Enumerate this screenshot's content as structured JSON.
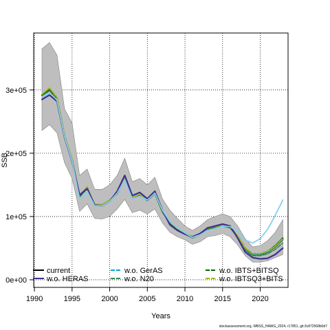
{
  "chart_data": {
    "type": "line",
    "xlabel": "Years",
    "ylabel": "SSB",
    "xlim": [
      1989.9,
      2023.7
    ],
    "ylim": [
      -12000,
      390000
    ],
    "xticks": [
      1990,
      1995,
      2000,
      2005,
      2010,
      2015,
      2020
    ],
    "xtick_labels": [
      "1990",
      "1995",
      "2000",
      "2005",
      "2010",
      "2015",
      "2020"
    ],
    "yticks": [
      0,
      100000,
      200000,
      300000
    ],
    "ytick_labels": [
      "0e+00",
      "1e+05",
      "2e+05",
      "3e+05"
    ],
    "grid": true,
    "legend_position": "bottom",
    "colors": {
      "band": "#bebebe",
      "current": "#000000",
      "heras": "#3d2f8f",
      "geras": "#00aacc",
      "n20": "#2e8b57",
      "ibts": "#006400",
      "ibtsq3": "#a4b228",
      "skyblue": "#87ceeb"
    },
    "band": {
      "x": [
        1991,
        1992,
        1993,
        1994,
        1995,
        1996,
        1997,
        1998,
        1999,
        2000,
        2001,
        2002,
        2003,
        2004,
        2005,
        2006,
        2007,
        2008,
        2009,
        2010,
        2011,
        2012,
        2013,
        2014,
        2015,
        2016,
        2017,
        2018,
        2019,
        2020,
        2021,
        2022,
        2023
      ],
      "lower": [
        236000,
        245000,
        232000,
        185000,
        160000,
        108000,
        120000,
        97000,
        96000,
        100000,
        112000,
        127000,
        106000,
        110000,
        104000,
        112000,
        90000,
        75000,
        68000,
        63000,
        56000,
        60000,
        68000,
        70000,
        73000,
        68000,
        55000,
        38000,
        28000,
        28000,
        30000,
        35000,
        40000
      ],
      "upper": [
        365000,
        375000,
        355000,
        270000,
        248000,
        165000,
        175000,
        143000,
        143000,
        150000,
        165000,
        192000,
        155000,
        160000,
        150000,
        162000,
        128000,
        110000,
        97000,
        85000,
        78000,
        85000,
        95000,
        100000,
        104000,
        100000,
        85000,
        65000,
        52000,
        54000,
        62000,
        75000,
        95000
      ]
    },
    "series": [
      {
        "name": "current",
        "style": "solid",
        "values": [
          292000,
          302000,
          287000,
          227000,
          190000,
          132000,
          146000,
          118000,
          118000,
          125000,
          137000,
          160000,
          129000,
          134000,
          126000,
          137000,
          108000,
          90000,
          80000,
          73000,
          67000,
          72000,
          80000,
          83000,
          86000,
          83000,
          68000,
          49000,
          40000,
          40000,
          44000,
          52000,
          64000
        ]
      },
      {
        "name": "w.o. HERAS",
        "style": "solid",
        "values": [
          285000,
          292000,
          282000,
          225000,
          187000,
          134000,
          144000,
          118000,
          117000,
          124000,
          140000,
          165000,
          133000,
          138000,
          128000,
          140000,
          110000,
          87000,
          78000,
          72000,
          68000,
          73000,
          82000,
          85000,
          88000,
          85000,
          66000,
          44000,
          35000,
          33000,
          34000,
          40000,
          50000
        ]
      },
      {
        "name": "w.o. GerAS",
        "style": "dashed",
        "values": [
          291000,
          300000,
          286000,
          227000,
          190000,
          132000,
          145000,
          118000,
          118000,
          125000,
          137000,
          160000,
          129000,
          134000,
          126000,
          137000,
          108000,
          90000,
          80000,
          73000,
          67000,
          72000,
          80000,
          83000,
          86000,
          83000,
          68000,
          49000,
          40000,
          40000,
          44000,
          52000,
          64000
        ]
      },
      {
        "name": "w.o. N20",
        "style": "dashed",
        "values": [
          290000,
          299000,
          285000,
          226000,
          189000,
          131000,
          144000,
          117000,
          117000,
          124000,
          136000,
          159000,
          128000,
          133000,
          125000,
          136000,
          107000,
          89000,
          79000,
          72000,
          66000,
          71000,
          79000,
          82000,
          85000,
          82000,
          67000,
          47000,
          38000,
          38000,
          41000,
          48000,
          58000
        ]
      },
      {
        "name": "w.o. IBTS+BITSQ",
        "style": "dashed",
        "values": [
          292000,
          301000,
          287000,
          227000,
          190000,
          132000,
          146000,
          118000,
          118000,
          125000,
          137000,
          160000,
          129000,
          134000,
          126000,
          137000,
          108000,
          90000,
          80000,
          73000,
          67000,
          72000,
          80000,
          83000,
          86000,
          83000,
          69000,
          50000,
          41000,
          41000,
          45000,
          54000,
          66000
        ]
      },
      {
        "name": "w.o. IBTSQ3+BITS",
        "style": "dashed",
        "values": [
          293000,
          303000,
          288000,
          228000,
          191000,
          133000,
          147000,
          119000,
          119000,
          126000,
          138000,
          161000,
          130000,
          135000,
          127000,
          138000,
          109000,
          91000,
          81000,
          74000,
          68000,
          73000,
          81000,
          84000,
          87000,
          84000,
          69000,
          50000,
          41000,
          41000,
          45000,
          53000,
          65000
        ]
      },
      {
        "style": "solid",
        "values": [
          289000,
          296000,
          284000,
          226000,
          188000,
          128000,
          140000,
          117000,
          117000,
          124000,
          137000,
          158000,
          128000,
          132000,
          126000,
          137000,
          110000,
          92000,
          82000,
          74000,
          67000,
          71000,
          78000,
          81000,
          85000,
          84000,
          76000,
          63000,
          58000,
          65000,
          80000,
          102000,
          126000
        ]
      }
    ]
  },
  "legend": [
    {
      "label": "current"
    },
    {
      "label": "w.o. HERAS"
    },
    {
      "label": "w.o. GerAS"
    },
    {
      "label": "w.o. N20"
    },
    {
      "label": "w.o. IBTS+BITSQ"
    },
    {
      "label": "w.o. IBTSQ3+BITS"
    }
  ],
  "footnote": "stockassessment.org, WBSS_HAWG_2024, r17851, git:3c872568b0d7"
}
